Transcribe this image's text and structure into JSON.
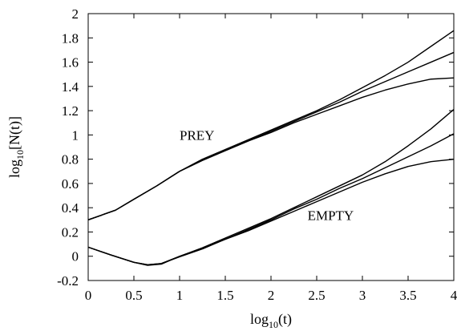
{
  "chart_data": {
    "type": "line",
    "title": "",
    "xlabel": "log10(t)",
    "xlabel_parts": {
      "pre": "log",
      "sub": "10",
      "post": "(t)"
    },
    "ylabel": "log10[N(t)]",
    "ylabel_parts": {
      "pre": "log",
      "sub": "10",
      "post": "[N(t)]"
    },
    "xlim": [
      0,
      4
    ],
    "ylim": [
      -0.2,
      2
    ],
    "xticks": [
      0,
      0.5,
      1,
      1.5,
      2,
      2.5,
      3,
      3.5,
      4
    ],
    "xtick_labels": [
      "0",
      "0.5",
      "1",
      "1.5",
      "2",
      "2.5",
      "3",
      "3.5",
      "4"
    ],
    "yticks": [
      -0.2,
      0,
      0.2,
      0.4,
      0.6,
      0.8,
      1,
      1.2,
      1.4,
      1.6,
      1.8,
      2
    ],
    "ytick_labels": [
      "-0.2",
      "0",
      "0.2",
      "0.4",
      "0.6",
      "0.8",
      "1",
      "1.2",
      "1.4",
      "1.6",
      "1.8",
      "2"
    ],
    "grid": false,
    "legend": "none",
    "annotations": [
      {
        "text": "PREY",
        "x": 1.0,
        "y": 0.96
      },
      {
        "text": "EMPTY",
        "x": 2.4,
        "y": 0.3
      }
    ],
    "series": [
      {
        "group": "prey",
        "x": [
          0,
          0.3,
          0.5,
          0.75,
          1.0,
          1.25,
          1.5,
          1.75,
          2.0,
          2.25,
          2.5,
          2.75,
          3.0,
          3.25,
          3.5,
          3.75,
          4.0
        ],
        "y": [
          0.3,
          0.38,
          0.47,
          0.58,
          0.7,
          0.8,
          0.88,
          0.96,
          1.04,
          1.12,
          1.2,
          1.29,
          1.39,
          1.49,
          1.6,
          1.73,
          1.86
        ]
      },
      {
        "group": "prey",
        "x": [
          0,
          0.3,
          0.5,
          0.75,
          1.0,
          1.25,
          1.5,
          1.75,
          2.0,
          2.25,
          2.5,
          2.75,
          3.0,
          3.25,
          3.5,
          3.75,
          4.0
        ],
        "y": [
          0.3,
          0.38,
          0.47,
          0.58,
          0.7,
          0.79,
          0.87,
          0.95,
          1.03,
          1.11,
          1.19,
          1.27,
          1.36,
          1.44,
          1.52,
          1.6,
          1.68
        ]
      },
      {
        "group": "prey",
        "x": [
          0,
          0.3,
          0.5,
          0.75,
          1.0,
          1.25,
          1.5,
          1.75,
          2.0,
          2.25,
          2.5,
          2.75,
          3.0,
          3.25,
          3.5,
          3.75,
          4.0
        ],
        "y": [
          0.3,
          0.38,
          0.47,
          0.58,
          0.7,
          0.79,
          0.87,
          0.95,
          1.02,
          1.1,
          1.17,
          1.24,
          1.31,
          1.37,
          1.42,
          1.46,
          1.47
        ]
      },
      {
        "group": "empty",
        "x": [
          0,
          0.25,
          0.5,
          0.65,
          0.8,
          1.0,
          1.25,
          1.5,
          1.75,
          2.0,
          2.25,
          2.5,
          2.75,
          3.0,
          3.25,
          3.5,
          3.75,
          4.0
        ],
        "y": [
          0.075,
          0.01,
          -0.05,
          -0.07,
          -0.06,
          0.0,
          0.07,
          0.15,
          0.23,
          0.31,
          0.4,
          0.49,
          0.58,
          0.67,
          0.78,
          0.91,
          1.05,
          1.21
        ]
      },
      {
        "group": "empty",
        "x": [
          0,
          0.25,
          0.5,
          0.65,
          0.8,
          1.0,
          1.25,
          1.5,
          1.75,
          2.0,
          2.25,
          2.5,
          2.75,
          3.0,
          3.25,
          3.5,
          3.75,
          4.0
        ],
        "y": [
          0.075,
          0.01,
          -0.05,
          -0.075,
          -0.065,
          0.0,
          0.065,
          0.14,
          0.22,
          0.3,
          0.39,
          0.47,
          0.56,
          0.64,
          0.73,
          0.82,
          0.91,
          1.01
        ]
      },
      {
        "group": "empty",
        "x": [
          0,
          0.25,
          0.5,
          0.65,
          0.8,
          1.0,
          1.25,
          1.5,
          1.75,
          2.0,
          2.25,
          2.5,
          2.75,
          3.0,
          3.25,
          3.5,
          3.75,
          4.0
        ],
        "y": [
          0.075,
          0.01,
          -0.05,
          -0.07,
          -0.06,
          -0.005,
          0.06,
          0.14,
          0.21,
          0.29,
          0.37,
          0.45,
          0.53,
          0.61,
          0.68,
          0.74,
          0.78,
          0.8
        ]
      }
    ]
  }
}
